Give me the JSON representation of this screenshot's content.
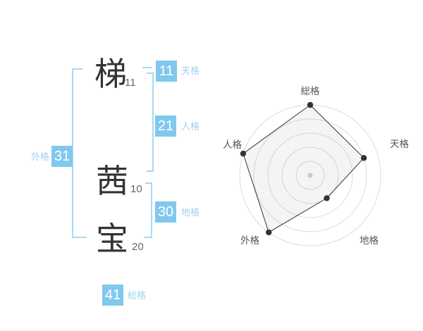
{
  "name_panel": {
    "characters": [
      {
        "char": "梯",
        "strokes": "11"
      },
      {
        "char": "茜",
        "strokes": "10"
      },
      {
        "char": "宝",
        "strokes": "20"
      }
    ],
    "kaku": [
      {
        "id": "tenkaku",
        "value": "11",
        "label": "天格"
      },
      {
        "id": "jinkaku",
        "value": "21",
        "label": "人格"
      },
      {
        "id": "gaikaku",
        "value": "31",
        "label": "外格"
      },
      {
        "id": "chikaku",
        "value": "30",
        "label": "地格"
      },
      {
        "id": "soukaku",
        "value": "41",
        "label": "総格"
      }
    ],
    "colors": {
      "badge_bg": "#80C8ED",
      "kaku_label_text": "#9CD2F1",
      "bracket": "#A8D9F5",
      "kanji": "#333333",
      "stroke_count": "#666666"
    }
  },
  "chart_data": {
    "type": "radar",
    "categories": [
      "総格",
      "天格",
      "地格",
      "外格",
      "人格"
    ],
    "values": [
      5,
      4,
      2,
      5,
      5
    ],
    "max": 5,
    "rings": 5,
    "start_angle_deg": 90,
    "direction": "clockwise",
    "grid": "concentric-circles",
    "legend": "none",
    "colors": {
      "ring": "#dcdcdc",
      "polygon_stroke": "#333333",
      "polygon_fill": "rgba(110,110,110,0.08)",
      "vertex": "#333333",
      "center_dot": "#c9c9c9",
      "label": "#555555"
    }
  }
}
